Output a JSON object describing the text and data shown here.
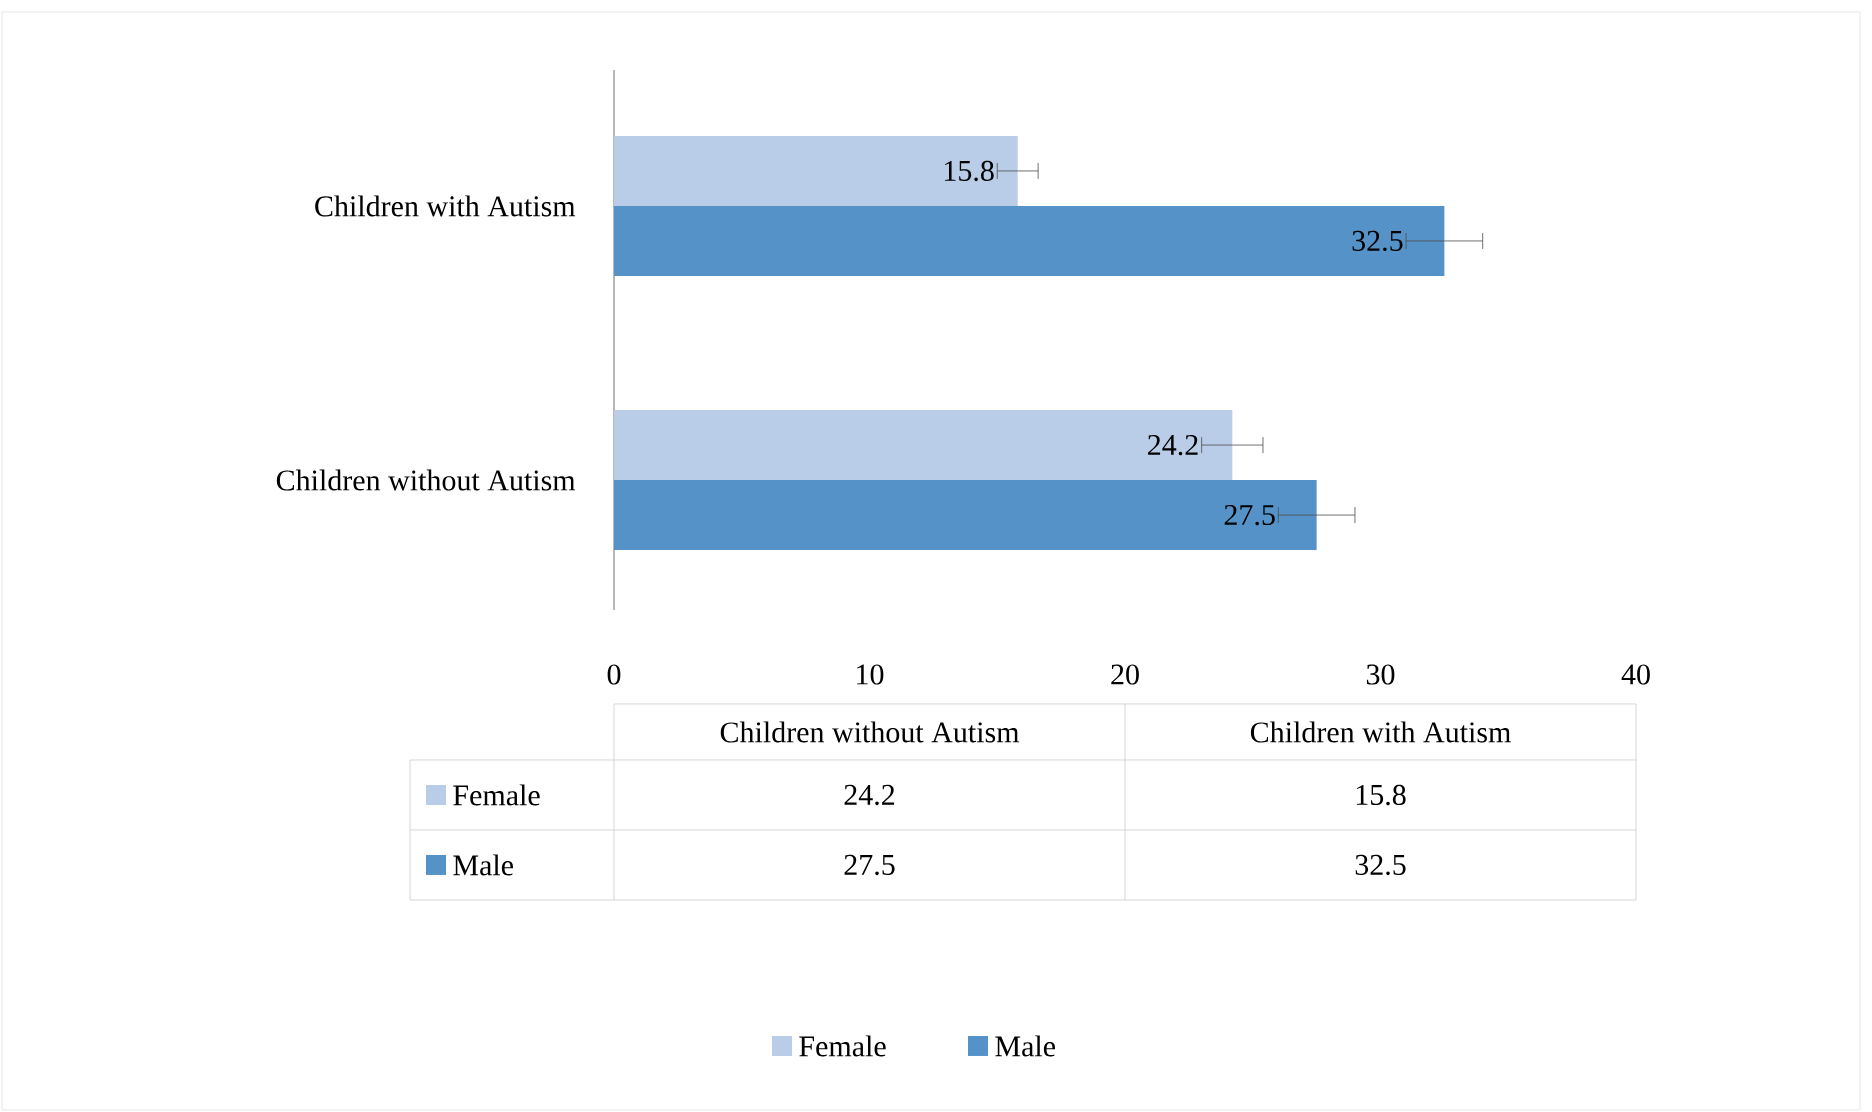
{
  "chart_data": {
    "type": "bar",
    "orientation": "horizontal",
    "categories": [
      "Children with Autism",
      "Children without Autism"
    ],
    "series": [
      {
        "name": "Female",
        "color": "#b9cde8",
        "values": [
          15.8,
          24.2
        ],
        "errors": [
          0.8,
          1.2
        ]
      },
      {
        "name": "Male",
        "color": "#5592c8",
        "values": [
          32.5,
          27.5
        ],
        "errors": [
          1.5,
          1.5
        ]
      }
    ],
    "xlim": [
      0,
      40
    ],
    "xticks": [
      0,
      10,
      20,
      30,
      40
    ],
    "data_labels": true,
    "annotations": [
      "24.2",
      "15.8",
      "27.5",
      "32.5"
    ],
    "legend": "bottom",
    "grid": false
  }
}
